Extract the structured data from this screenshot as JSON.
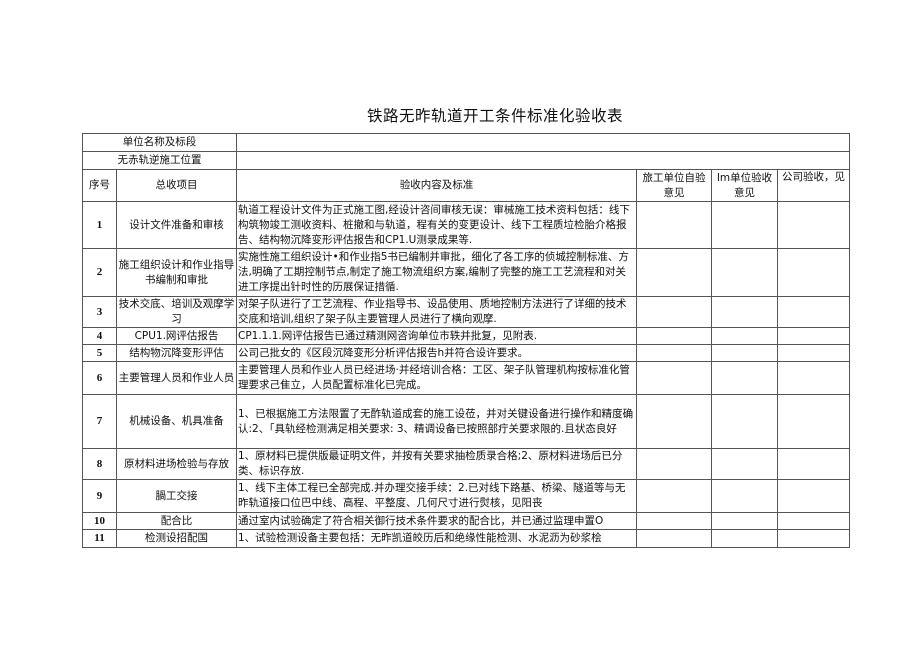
{
  "title": "铁路无昨轨道开工条件标准化验收表",
  "info_rows": [
    {
      "label": "单位名称及标段",
      "value": ""
    },
    {
      "label": "无赤轨逆施工位置",
      "value": ""
    }
  ],
  "headers": {
    "seq": "序号",
    "item": "总收项目",
    "content": "验收内容及标准",
    "self_check": "旅工单位自验意见",
    "supervisor": "Im单位验收意见",
    "company": "公司验收，见"
  },
  "rows": [
    {
      "seq": "1",
      "item": "设计文件准备和审核",
      "content": "轨道工程设计文件为正式施工图,经设计咨间审核无误：审械施工技术资料包括：线下构筑物竣工测收资料、桩撤和与轨道，程有关的变更设计、线下工程质垃检胎介格报告、结构物沉降变形评估报告和CP1.U测录成果等."
    },
    {
      "seq": "2",
      "item": "施工组织设计和作业指导书编制和审批",
      "content": "实施性施工组织设计•和作业指5书已编制并审批，细化了各工序的侦城控制标准、方法,明确了工期控制节点,制定了施工物流组织方案,编制了完整的施工工艺流程和对关进工序提出针时性的历展保证措循."
    },
    {
      "seq": "3",
      "item": "技术交底、培训及观摩学习",
      "content": "对架子队进行了工艺流程、作业指导书、设品使用、质地控制方法进行了详细的技术交底和培训,组织了架子队主要管理人员进行了横向观摩."
    },
    {
      "seq": "4",
      "item": "CPU1.网评估报告",
      "content": "CP1.1.1.网评估报告已通过精测网咨询单位市轶并批复，见附表."
    },
    {
      "seq": "5",
      "item": "结构物沉降变形评估",
      "content": "公司己批女的《区段沉降变形分析评估报告h并符合设许要求。"
    },
    {
      "seq": "6",
      "item": "主要管理人员和作业人员",
      "content": "主要管理人员和作业人员已经进场·并经培训合格：工区、架子队管理机构按标准化管理要求己隹立，人员配置标准化已完成。"
    },
    {
      "seq": "7",
      "item": "机械设备、机具准备",
      "content": "1、已根据施工方法限置了无酢轨道成套的施工设莅，并对关键设备进行操作和精度确认:2、「具轨经检测满足相关要求: 3、精调设备已按照部疔关要求限的.且状态良好"
    },
    {
      "seq": "8",
      "item": "原材料进场检验与存放",
      "content": "1、原材料已提供版最证明文件，并按有关要求抽检质录合格;2、原材料进场后已分类、标识存放."
    },
    {
      "seq": "9",
      "item": "腡工交接",
      "content": "1、线下主体工程已全部完成.并办理交接手续：2.已对线下路基、桥梁、隧道等与无昨轨道接口位巴中线、高程、平整度、几何尺寸进行熨核，见阳丧"
    },
    {
      "seq": "10",
      "item": "配合比",
      "content": "通过室内试验确定了符合相关御行技术条件要求的配合比，并已通过监理申置O"
    },
    {
      "seq": "11",
      "item": "检测设招配国",
      "content": "1、试验检测设备主要包括：无昨凯道皎历后和绝缘性能检测、水泥沥为砂浆桧"
    }
  ]
}
